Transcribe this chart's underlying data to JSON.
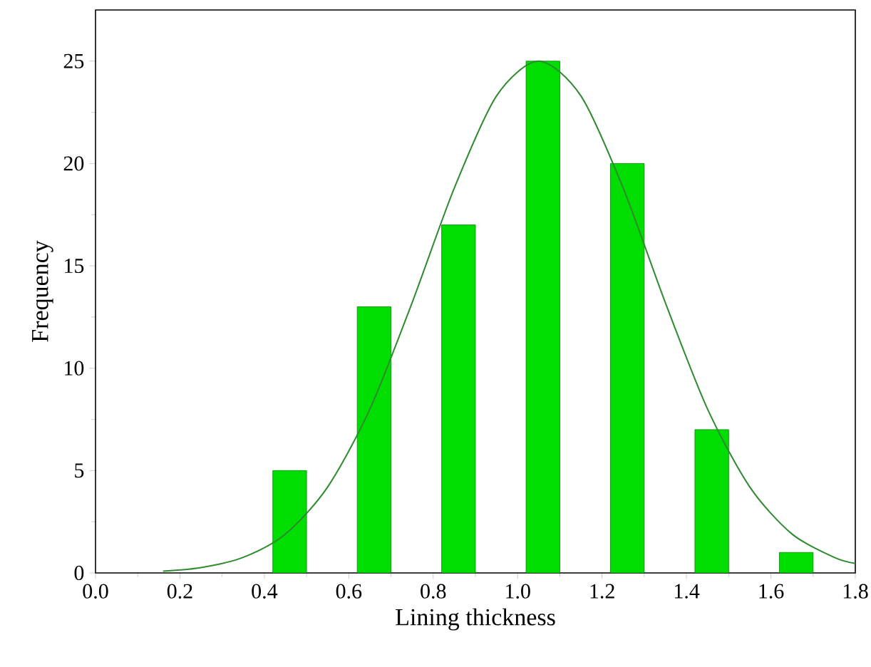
{
  "chart_data": {
    "type": "bar",
    "xlabel": "Lining thickness",
    "ylabel": "Frequency",
    "xlim": [
      0,
      1.8
    ],
    "xticks": [
      {
        "value": 0,
        "label": "0.0"
      },
      0.2,
      0.4,
      0.6,
      0.8,
      {
        "value": 1,
        "label": "1.0"
      },
      1.2,
      1.4,
      1.6,
      1.8
    ],
    "ylim": [
      0,
      27.5
    ],
    "yticks": [
      0,
      5,
      10,
      15,
      20,
      25
    ],
    "x": [
      0.46,
      0.66,
      0.86,
      1.06,
      1.26,
      1.46,
      1.66
    ],
    "series": [
      {
        "color": "#00dd00",
        "values": [
          5,
          13,
          17,
          25,
          20,
          7,
          1
        ]
      },
      {
        "type": "line",
        "color": "#2e8b2e",
        "x": [
          0.16,
          0.25,
          0.35,
          0.45,
          0.55,
          0.65,
          0.75,
          0.85,
          0.95,
          1.05,
          1.15,
          1.25,
          1.35,
          1.45,
          1.55,
          1.65,
          1.75,
          1.8
        ],
        "values": [
          0.09,
          0.26,
          0.76,
          1.9,
          4.2,
          8.0,
          13.2,
          18.8,
          23.3,
          25,
          23.3,
          18.8,
          13.2,
          8.0,
          4.2,
          1.9,
          0.76,
          0.46
        ]
      }
    ]
  }
}
